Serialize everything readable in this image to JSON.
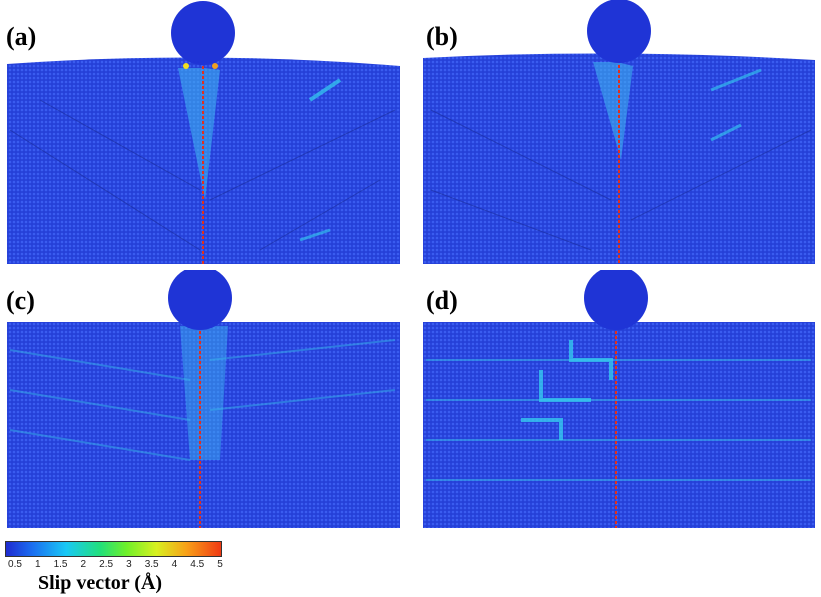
{
  "panels": [
    {
      "id": "a",
      "label": "(a)"
    },
    {
      "id": "b",
      "label": "(b)"
    },
    {
      "id": "c",
      "label": "(c)"
    },
    {
      "id": "d",
      "label": "(d)"
    }
  ],
  "colorbar": {
    "ticks": [
      "0.5",
      "1",
      "1.5",
      "2",
      "2.5",
      "3",
      "3.5",
      "4",
      "4.5",
      "5"
    ],
    "title": "Slip vector  (Å)"
  },
  "colors": {
    "substrate": "#2a45e0",
    "indenter": "#1f34d6",
    "centerline": "#e0301e",
    "highlight": "#35d0f0",
    "hot": "#c8f030"
  }
}
